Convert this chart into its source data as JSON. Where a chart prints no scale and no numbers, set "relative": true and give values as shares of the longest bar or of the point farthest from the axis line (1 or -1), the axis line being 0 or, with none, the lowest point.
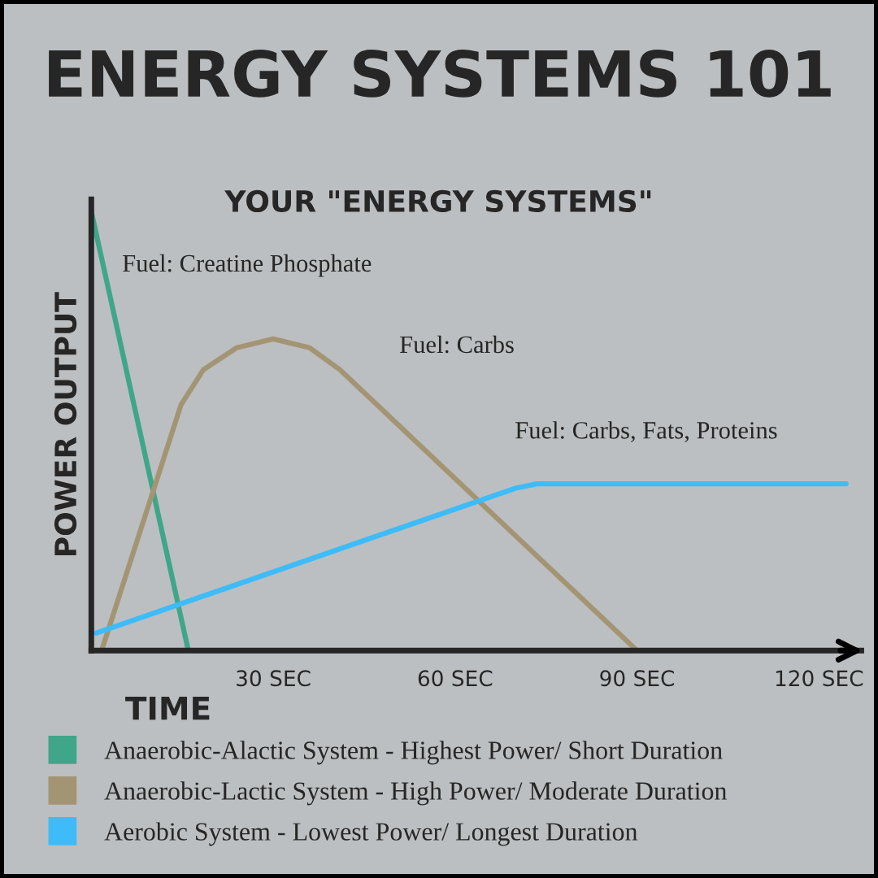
{
  "chart_data": {
    "type": "line",
    "title": "ENERGY SYSTEMS 101",
    "subtitle": "YOUR \"ENERGY SYSTEMS\"",
    "xlabel": "TIME",
    "ylabel": "POWER OUTPUT",
    "relative": true,
    "tick_labels": "x",
    "legend": "bottom",
    "grid": false,
    "marker": "none",
    "line_style": "solid",
    "xlim": [
      0,
      127
    ],
    "xticks": [
      {
        "value": 30,
        "label": "30 SEC"
      },
      {
        "value": 60,
        "label": "60 SEC"
      },
      {
        "value": 90,
        "label": "90 SEC"
      },
      {
        "value": 120,
        "label": "120 SEC"
      }
    ],
    "series": [
      {
        "name": "Anaerobic-Alactic System - Highest Power/ Short Duration",
        "color": "#3fa68a",
        "x": [
          0,
          16
        ],
        "values": [
          1,
          0
        ]
      },
      {
        "name": "Anaerobic-Lactic System - High Power/ Moderate Duration",
        "color": "#a39574",
        "x": [
          1.7,
          14.8,
          18.5,
          24,
          30,
          36,
          41,
          90
        ],
        "values": [
          0,
          0.56,
          0.64,
          0.69,
          0.71,
          0.69,
          0.64,
          0
        ]
      },
      {
        "name": "Aerobic System - Lowest Power/ Longest Duration",
        "color": "#3dbcf9",
        "x": [
          0.8,
          70,
          73.5,
          124.5
        ],
        "values": [
          0.04,
          0.37,
          0.38,
          0.38
        ]
      }
    ],
    "annotations": [
      "Fuel: Creatine Phosphate",
      "Fuel: Carbs",
      "Fuel: Carbs, Fats, Proteins"
    ]
  }
}
